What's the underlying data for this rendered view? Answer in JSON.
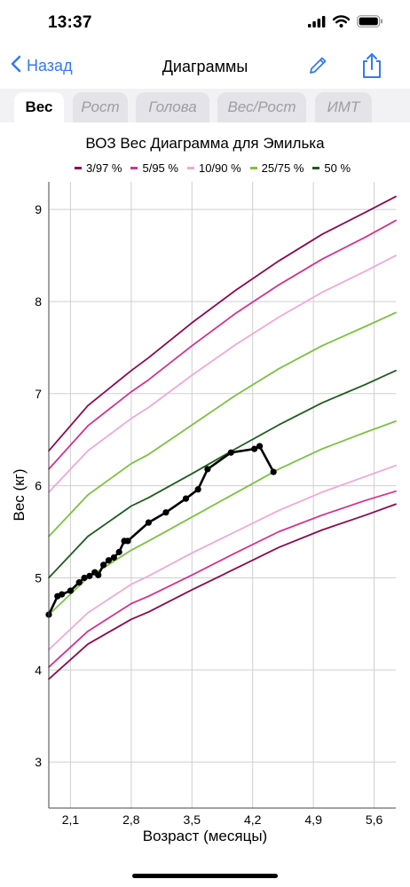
{
  "status": {
    "time": "13:37"
  },
  "nav": {
    "back_label": "Назад",
    "title": "Диаграммы"
  },
  "tabs": [
    {
      "label": "Вес",
      "active": true
    },
    {
      "label": "Рост",
      "active": false
    },
    {
      "label": "Голова",
      "active": false
    },
    {
      "label": "Вес/Рост",
      "active": false
    },
    {
      "label": "ИМТ",
      "active": false
    }
  ],
  "icons": {
    "back": "chevron-left-icon",
    "edit": "pencil-icon",
    "share": "share-icon",
    "signal": "cellular-signal-icon",
    "wifi": "wifi-icon",
    "battery": "battery-icon"
  },
  "colors": {
    "accent": "#3478f6"
  },
  "chart_data": {
    "type": "line",
    "title": "ВОЗ Вес Диаграмма для Эмилька",
    "xlabel": "Возраст (месяцы)",
    "ylabel": "Вес (кг)",
    "xlim": [
      1.85,
      5.85
    ],
    "ylim": [
      2.5,
      9.3
    ],
    "x_ticks": [
      2.1,
      2.8,
      3.5,
      4.2,
      4.9,
      5.6
    ],
    "x_tick_labels": [
      "2,1",
      "2,8",
      "3,5",
      "4,2",
      "4,9",
      "5,6"
    ],
    "y_ticks": [
      3,
      4,
      5,
      6,
      7,
      8,
      9
    ],
    "y_tick_labels": [
      "3",
      "4",
      "5",
      "6",
      "7",
      "8",
      "9"
    ],
    "grid": true,
    "legend_position": "top",
    "x": [
      1.85,
      2.3,
      2.8,
      3.0,
      3.5,
      4.0,
      4.5,
      5.0,
      5.5,
      5.85
    ],
    "series": [
      {
        "name": "3/97 %",
        "color": "#8b0a50",
        "values": [
          3.9,
          4.28,
          4.55,
          4.63,
          4.87,
          5.1,
          5.33,
          5.52,
          5.68,
          5.8
        ]
      },
      {
        "name": "5/95 %",
        "color": "#d2338f",
        "values": [
          4.03,
          4.42,
          4.72,
          4.8,
          5.03,
          5.27,
          5.5,
          5.68,
          5.84,
          5.94
        ]
      },
      {
        "name": "10/90 %",
        "color": "#f0a8d8",
        "values": [
          4.22,
          4.62,
          4.93,
          5.02,
          5.27,
          5.5,
          5.73,
          5.93,
          6.1,
          6.22
        ]
      },
      {
        "name": "25/75 %",
        "color": "#7cc242",
        "values": [
          4.6,
          5.0,
          5.3,
          5.4,
          5.66,
          5.92,
          6.18,
          6.4,
          6.58,
          6.7
        ]
      },
      {
        "name": "50 %",
        "color": "#1e5c1e",
        "values": [
          5.0,
          5.45,
          5.78,
          5.87,
          6.13,
          6.4,
          6.66,
          6.9,
          7.1,
          7.25
        ]
      },
      {
        "name": "25/75 %",
        "color": "#7cc242",
        "values": [
          5.45,
          5.9,
          6.24,
          6.34,
          6.66,
          6.98,
          7.27,
          7.52,
          7.73,
          7.88
        ]
      },
      {
        "name": "10/90 %",
        "color": "#f0a8d8",
        "values": [
          5.93,
          6.38,
          6.73,
          6.85,
          7.2,
          7.53,
          7.83,
          8.1,
          8.33,
          8.5
        ]
      },
      {
        "name": "5/95 %",
        "color": "#d2338f",
        "values": [
          6.18,
          6.65,
          7.02,
          7.15,
          7.52,
          7.87,
          8.18,
          8.46,
          8.7,
          8.88
        ]
      },
      {
        "name": "3/97 %",
        "color": "#8b0a50",
        "values": [
          6.38,
          6.87,
          7.25,
          7.39,
          7.77,
          8.12,
          8.44,
          8.73,
          8.97,
          9.14
        ]
      }
    ],
    "child": {
      "color": "#000000",
      "x": [
        1.85,
        1.95,
        2.0,
        2.1,
        2.2,
        2.26,
        2.32,
        2.38,
        2.42,
        2.48,
        2.54,
        2.6,
        2.66,
        2.72,
        2.76,
        3.0,
        3.2,
        3.43,
        3.57,
        3.68,
        3.95,
        4.22,
        4.28,
        4.44
      ],
      "y": [
        4.6,
        4.8,
        4.82,
        4.86,
        4.95,
        5.0,
        5.02,
        5.06,
        5.03,
        5.14,
        5.19,
        5.22,
        5.28,
        5.4,
        5.4,
        5.6,
        5.71,
        5.86,
        5.96,
        6.18,
        6.36,
        6.4,
        6.43,
        6.15
      ]
    }
  }
}
